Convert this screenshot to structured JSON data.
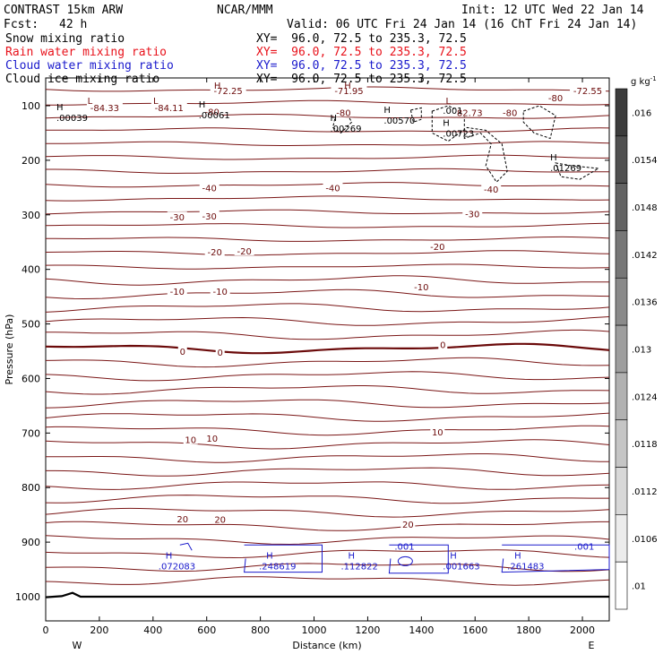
{
  "header": {
    "model": "CONTRAST 15km ARW",
    "center": "NCAR/MMM",
    "init": "Init: 12 UTC Wed 22 Jan 14",
    "fcst_label": "Fcst:",
    "fcst_value": "42 h",
    "valid": "Valid: 06 UTC Fri 24 Jan 14 (16 ChT Fri 24 Jan 14)",
    "fields": [
      {
        "name": "Snow mixing ratio",
        "xy": "XY=  96.0, 72.5 to 235.3, 72.5",
        "color": "#000000"
      },
      {
        "name": "Rain water mixing ratio",
        "xy": "XY=  96.0, 72.5 to 235.3, 72.5",
        "color": "#e8121b"
      },
      {
        "name": "Cloud water mixing ratio",
        "xy": "XY=  96.0, 72.5 to 235.3, 72.5",
        "color": "#1a1acc"
      },
      {
        "name": "Cloud ice mixing ratio",
        "xy": "XY=  96.0, 72.5 to 235.3, 72.5",
        "color": "#000000"
      }
    ]
  },
  "chart_data": {
    "type": "cross-section",
    "xlabel": "Distance (km)",
    "ylabel": "Pressure (hPa)",
    "xlim": [
      0,
      2100
    ],
    "ylim": [
      1050,
      60
    ],
    "xticks": [
      0,
      200,
      400,
      600,
      800,
      1000,
      1200,
      1400,
      1600,
      1800,
      2000
    ],
    "yticks": [
      100,
      200,
      300,
      400,
      500,
      600,
      700,
      800,
      900,
      1000
    ],
    "x_end_labels": {
      "left": "W",
      "right": "E"
    },
    "temperature_contour_color": "#7a1616",
    "temperature_contour_labels": [
      {
        "text": "-72.25",
        "x": 680,
        "p": 72
      },
      {
        "text": "-71.95",
        "x": 1130,
        "p": 72
      },
      {
        "text": "-72.55",
        "x": 2020,
        "p": 72
      },
      {
        "text": "-84.33",
        "x": 220,
        "p": 103
      },
      {
        "text": "-84.11",
        "x": 460,
        "p": 103
      },
      {
        "text": "-80",
        "x": 620,
        "p": 111
      },
      {
        "text": "-80",
        "x": 1110,
        "p": 112
      },
      {
        "text": "-80",
        "x": 1900,
        "p": 85
      },
      {
        "text": "-80",
        "x": 1730,
        "p": 112
      },
      {
        "text": "82.73",
        "x": 1580,
        "p": 112
      },
      {
        "text": "-40",
        "x": 610,
        "p": 250
      },
      {
        "text": "-40",
        "x": 1070,
        "p": 250
      },
      {
        "text": "-40",
        "x": 1660,
        "p": 253
      },
      {
        "text": "-30",
        "x": 490,
        "p": 304
      },
      {
        "text": "-30",
        "x": 610,
        "p": 302
      },
      {
        "text": "-30",
        "x": 1590,
        "p": 298
      },
      {
        "text": "-20",
        "x": 630,
        "p": 368
      },
      {
        "text": "-20",
        "x": 740,
        "p": 366
      },
      {
        "text": "-20",
        "x": 1460,
        "p": 358
      },
      {
        "text": "-10",
        "x": 490,
        "p": 440
      },
      {
        "text": "-10",
        "x": 650,
        "p": 440
      },
      {
        "text": "-10",
        "x": 1400,
        "p": 432
      },
      {
        "text": "0",
        "x": 510,
        "p": 550
      },
      {
        "text": "0",
        "x": 650,
        "p": 552
      },
      {
        "text": "0",
        "x": 1480,
        "p": 538
      },
      {
        "text": "10",
        "x": 540,
        "p": 712
      },
      {
        "text": "10",
        "x": 620,
        "p": 709
      },
      {
        "text": "10",
        "x": 1460,
        "p": 698
      },
      {
        "text": "20",
        "x": 510,
        "p": 857
      },
      {
        "text": "20",
        "x": 650,
        "p": 858
      },
      {
        "text": "20",
        "x": 1350,
        "p": 867
      }
    ],
    "low_markers": [
      {
        "text": "L",
        "x": 165,
        "p": 90
      },
      {
        "text": "L",
        "x": 410,
        "p": 90
      },
      {
        "text": "L",
        "x": 1500,
        "p": 90
      }
    ],
    "high_markers": [
      {
        "text": "H",
        "x": 640,
        "p": 62
      },
      {
        "text": "H",
        "x": 1125,
        "p": 62
      }
    ],
    "cloud_ice_maxima": [
      {
        "label": ".00039",
        "x": 40,
        "p": 118
      },
      {
        "label": ".00061",
        "x": 570,
        "p": 113
      },
      {
        "label": ".00269",
        "x": 1060,
        "p": 138
      },
      {
        "label": ".00570",
        "x": 1260,
        "p": 123
      },
      {
        "label": ".00723",
        "x": 1480,
        "p": 147
      },
      {
        "label": ".01269",
        "x": 1880,
        "p": 210
      },
      {
        "label": ".001",
        "x": 1480,
        "p": 105
      }
    ],
    "cloud_water_maxima": [
      {
        "label": ".072083",
        "x": 420,
        "p": 943
      },
      {
        "label": ".248619",
        "x": 795,
        "p": 943
      },
      {
        "label": ".112822",
        "x": 1100,
        "p": 943
      },
      {
        "label": ".001663",
        "x": 1480,
        "p": 943
      },
      {
        "label": ".261483",
        "x": 1720,
        "p": 943
      },
      {
        "label": ".001",
        "x": 1300,
        "p": 907
      },
      {
        "label": ".001",
        "x": 1970,
        "p": 907
      }
    ],
    "colorbar": {
      "unit": "g kg",
      "unit_sup": "-1",
      "labels": [
        ".016",
        ".0154",
        ".0148",
        ".0142",
        ".0136",
        ".013",
        ".0124",
        ".0118",
        ".0112",
        ".0106",
        ".01"
      ]
    }
  }
}
